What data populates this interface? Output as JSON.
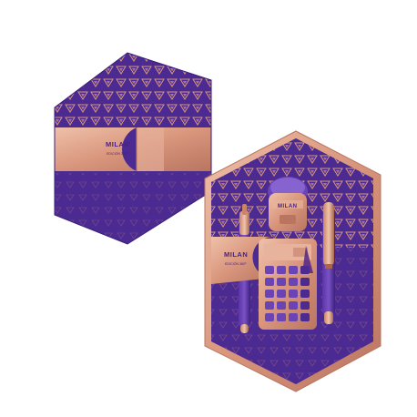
{
  "scene": {
    "description_free": true,
    "brand": "MILAN",
    "sub_brand": "EDICIÓN 360º",
    "eraser_brand": "MILAN",
    "colors": {
      "purple": "#4b2a91",
      "purple_dark": "#3a1e78",
      "copper": "#d8957c",
      "copper_light": "#e8b39d",
      "copper_dark": "#b97560",
      "white": "#ffffff"
    },
    "calculator_keys": [
      "",
      "",
      "",
      "",
      "",
      "",
      "",
      "",
      "",
      "",
      "",
      "",
      "",
      "",
      "",
      "",
      "",
      "",
      "",
      ""
    ]
  }
}
